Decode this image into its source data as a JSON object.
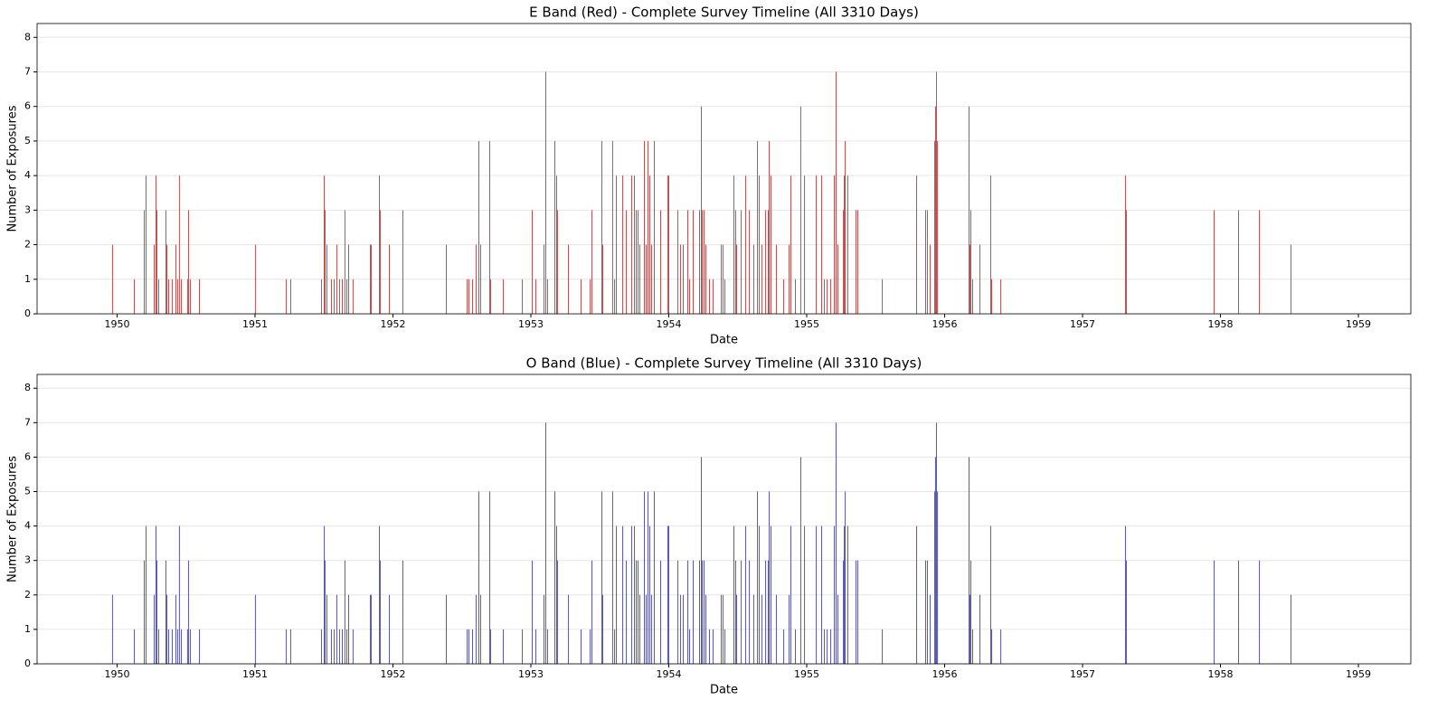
{
  "chart_data": [
    {
      "type": "bar",
      "title": "E Band (Red) - Complete Survey Timeline (All 3310 Days)",
      "x_label": "Date",
      "y_label": "Number of Exposures",
      "color": "#b03030",
      "x": [
        1949.967,
        1950.125,
        1950.197,
        1950.21,
        1950.269,
        1950.282,
        1950.289,
        1950.302,
        1950.354,
        1950.361,
        1950.374,
        1950.4,
        1950.426,
        1950.439,
        1950.452,
        1950.466,
        1950.511,
        1950.518,
        1950.531,
        1950.597,
        1951.003,
        1951.226,
        1951.259,
        1951.482,
        1951.502,
        1951.508,
        1951.521,
        1951.554,
        1951.574,
        1951.593,
        1951.613,
        1951.633,
        1951.652,
        1951.666,
        1951.679,
        1951.711,
        1951.836,
        1951.843,
        1951.902,
        1951.908,
        1951.974,
        1952.072,
        1952.387,
        1952.538,
        1952.551,
        1952.577,
        1952.603,
        1952.623,
        1952.636,
        1952.702,
        1952.708,
        1952.8,
        1952.938,
        1953.01,
        1953.036,
        1953.095,
        1953.108,
        1953.121,
        1953.174,
        1953.187,
        1953.193,
        1953.272,
        1953.364,
        1953.43,
        1953.443,
        1953.515,
        1953.521,
        1953.593,
        1953.607,
        1953.62,
        1953.666,
        1953.692,
        1953.731,
        1953.751,
        1953.764,
        1953.777,
        1953.79,
        1953.823,
        1953.836,
        1953.849,
        1953.862,
        1953.875,
        1953.895,
        1953.941,
        1953.993,
        1954.0,
        1954.066,
        1954.085,
        1954.105,
        1954.138,
        1954.151,
        1954.177,
        1954.223,
        1954.236,
        1954.243,
        1954.256,
        1954.269,
        1954.295,
        1954.321,
        1954.38,
        1954.393,
        1954.407,
        1954.472,
        1954.485,
        1954.492,
        1954.525,
        1954.557,
        1954.584,
        1954.616,
        1954.643,
        1954.656,
        1954.675,
        1954.702,
        1954.721,
        1954.728,
        1954.741,
        1954.78,
        1954.833,
        1954.872,
        1954.885,
        1954.918,
        1954.957,
        1954.984,
        1955.069,
        1955.108,
        1955.128,
        1955.148,
        1955.174,
        1955.2,
        1955.213,
        1955.226,
        1955.266,
        1955.272,
        1955.279,
        1955.298,
        1955.357,
        1955.37,
        1955.548,
        1955.797,
        1955.862,
        1955.875,
        1955.895,
        1955.928,
        1955.934,
        1955.941,
        1955.948,
        1956.177,
        1956.184,
        1956.19,
        1956.203,
        1956.256,
        1956.334,
        1956.341,
        1956.407,
        1957.311,
        1957.318,
        1957.954,
        1958.131,
        1958.282,
        1958.511
      ],
      "values": [
        2,
        1,
        3,
        4,
        2,
        4,
        3,
        1,
        3,
        2,
        1,
        1,
        2,
        1,
        4,
        1,
        1,
        3,
        1,
        1,
        2,
        1,
        1,
        1,
        4,
        3,
        2,
        1,
        1,
        2,
        1,
        1,
        3,
        1,
        2,
        1,
        2,
        2,
        4,
        3,
        2,
        3,
        2,
        1,
        1,
        1,
        2,
        5,
        2,
        5,
        1,
        1,
        1,
        3,
        1,
        2,
        7,
        1,
        5,
        4,
        3,
        2,
        1,
        1,
        3,
        5,
        2,
        5,
        1,
        4,
        4,
        3,
        4,
        4,
        3,
        3,
        2,
        5,
        2,
        5,
        4,
        2,
        5,
        3,
        4,
        4,
        3,
        2,
        2,
        3,
        1,
        3,
        3,
        6,
        3,
        3,
        2,
        1,
        1,
        2,
        2,
        1,
        4,
        3,
        2,
        3,
        4,
        3,
        2,
        5,
        4,
        2,
        3,
        3,
        5,
        4,
        2,
        1,
        2,
        4,
        1,
        6,
        4,
        4,
        4,
        1,
        1,
        1,
        4,
        7,
        2,
        3,
        4,
        5,
        4,
        3,
        3,
        1,
        4,
        3,
        3,
        2,
        5,
        6,
        7,
        5,
        6,
        2,
        3,
        1,
        2,
        4,
        1,
        1,
        4,
        3,
        3,
        3,
        3,
        2
      ],
      "xlim": [
        1949.42,
        1959.38
      ],
      "xticks": [
        1950,
        1951,
        1952,
        1953,
        1954,
        1955,
        1956,
        1957,
        1958,
        1959
      ],
      "ylim": [
        0,
        8.4
      ],
      "yticks": [
        0,
        1,
        2,
        3,
        4,
        5,
        6,
        7,
        8
      ],
      "grid": true
    },
    {
      "type": "bar",
      "title": "O Band (Blue) - Complete Survey Timeline (All 3310 Days)",
      "x_label": "Date",
      "y_label": "Number of Exposures",
      "color": "#3a3aaa",
      "x": [
        1949.967,
        1950.125,
        1950.197,
        1950.21,
        1950.269,
        1950.282,
        1950.289,
        1950.302,
        1950.354,
        1950.361,
        1950.374,
        1950.4,
        1950.426,
        1950.439,
        1950.452,
        1950.466,
        1950.511,
        1950.518,
        1950.531,
        1950.597,
        1951.003,
        1951.226,
        1951.259,
        1951.482,
        1951.502,
        1951.508,
        1951.521,
        1951.554,
        1951.574,
        1951.593,
        1951.613,
        1951.633,
        1951.652,
        1951.666,
        1951.679,
        1951.711,
        1951.836,
        1951.843,
        1951.902,
        1951.908,
        1951.974,
        1952.072,
        1952.387,
        1952.538,
        1952.551,
        1952.577,
        1952.603,
        1952.623,
        1952.636,
        1952.702,
        1952.708,
        1952.8,
        1952.938,
        1953.01,
        1953.036,
        1953.095,
        1953.108,
        1953.121,
        1953.174,
        1953.187,
        1953.193,
        1953.272,
        1953.364,
        1953.43,
        1953.443,
        1953.515,
        1953.521,
        1953.593,
        1953.607,
        1953.62,
        1953.666,
        1953.692,
        1953.731,
        1953.751,
        1953.764,
        1953.777,
        1953.79,
        1953.823,
        1953.836,
        1953.849,
        1953.862,
        1953.875,
        1953.895,
        1953.941,
        1953.993,
        1954.0,
        1954.066,
        1954.085,
        1954.105,
        1954.138,
        1954.151,
        1954.177,
        1954.223,
        1954.236,
        1954.243,
        1954.256,
        1954.269,
        1954.295,
        1954.321,
        1954.38,
        1954.393,
        1954.407,
        1954.472,
        1954.485,
        1954.492,
        1954.525,
        1954.557,
        1954.584,
        1954.616,
        1954.643,
        1954.656,
        1954.675,
        1954.702,
        1954.721,
        1954.728,
        1954.741,
        1954.78,
        1954.833,
        1954.872,
        1954.885,
        1954.918,
        1954.957,
        1954.984,
        1955.069,
        1955.108,
        1955.128,
        1955.148,
        1955.174,
        1955.2,
        1955.213,
        1955.226,
        1955.266,
        1955.272,
        1955.279,
        1955.298,
        1955.357,
        1955.37,
        1955.548,
        1955.797,
        1955.862,
        1955.875,
        1955.895,
        1955.928,
        1955.934,
        1955.941,
        1955.948,
        1956.177,
        1956.184,
        1956.19,
        1956.203,
        1956.256,
        1956.334,
        1956.341,
        1956.407,
        1957.311,
        1957.318,
        1957.954,
        1958.131,
        1958.282,
        1958.511
      ],
      "values": [
        2,
        1,
        3,
        4,
        2,
        4,
        3,
        1,
        3,
        2,
        1,
        1,
        2,
        1,
        4,
        1,
        1,
        3,
        1,
        1,
        2,
        1,
        1,
        1,
        4,
        3,
        2,
        1,
        1,
        2,
        1,
        1,
        3,
        1,
        2,
        1,
        2,
        2,
        4,
        3,
        2,
        3,
        2,
        1,
        1,
        1,
        2,
        5,
        2,
        5,
        1,
        1,
        1,
        3,
        1,
        2,
        7,
        1,
        5,
        4,
        3,
        2,
        1,
        1,
        3,
        5,
        2,
        5,
        1,
        4,
        4,
        3,
        4,
        4,
        3,
        3,
        2,
        5,
        2,
        5,
        4,
        2,
        5,
        3,
        4,
        4,
        3,
        2,
        2,
        3,
        1,
        3,
        3,
        6,
        3,
        3,
        2,
        1,
        1,
        2,
        2,
        1,
        4,
        3,
        2,
        3,
        4,
        3,
        2,
        5,
        4,
        2,
        3,
        3,
        5,
        4,
        2,
        1,
        2,
        4,
        1,
        6,
        4,
        4,
        4,
        1,
        1,
        1,
        4,
        7,
        2,
        3,
        4,
        5,
        4,
        3,
        3,
        1,
        4,
        3,
        3,
        2,
        5,
        6,
        7,
        5,
        6,
        2,
        3,
        1,
        2,
        4,
        1,
        1,
        4,
        3,
        3,
        3,
        3,
        2
      ],
      "xlim": [
        1949.42,
        1959.38
      ],
      "xticks": [
        1950,
        1951,
        1952,
        1953,
        1954,
        1955,
        1956,
        1957,
        1958,
        1959
      ],
      "ylim": [
        0,
        8.4
      ],
      "yticks": [
        0,
        1,
        2,
        3,
        4,
        5,
        6,
        7,
        8
      ],
      "grid": true
    }
  ]
}
